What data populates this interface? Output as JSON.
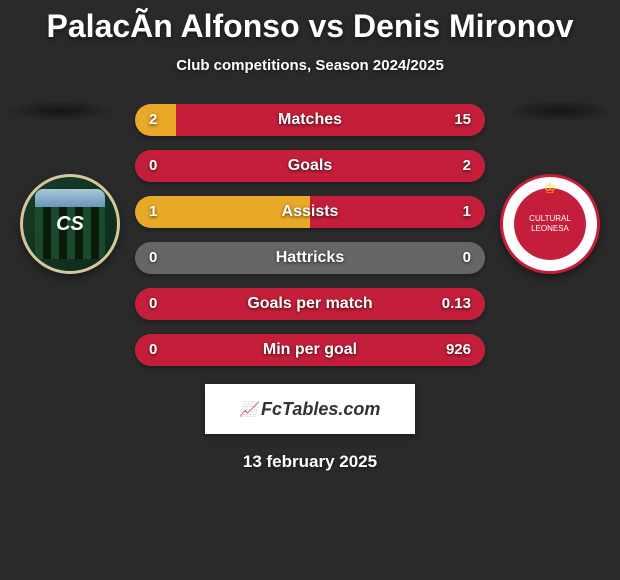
{
  "title": "PalacÃ­n Alfonso vs Denis Mironov",
  "subtitle": "Club competitions, Season 2024/2025",
  "player_left_color": "#e8a828",
  "player_right_color": "#c41e3a",
  "neutral_bar_color": "#666666",
  "stats": [
    {
      "label": "Matches",
      "left_val": "2",
      "right_val": "15",
      "left_pct": 11.8,
      "right_pct": 88.2
    },
    {
      "label": "Goals",
      "left_val": "0",
      "right_val": "2",
      "left_pct": 0,
      "right_pct": 100
    },
    {
      "label": "Assists",
      "left_val": "1",
      "right_val": "1",
      "left_pct": 50,
      "right_pct": 50
    },
    {
      "label": "Hattricks",
      "left_val": "0",
      "right_val": "0",
      "left_pct": 0,
      "right_pct": 0
    },
    {
      "label": "Goals per match",
      "left_val": "0",
      "right_val": "0.13",
      "left_pct": 0,
      "right_pct": 100
    },
    {
      "label": "Min per goal",
      "left_val": "0",
      "right_val": "926",
      "left_pct": 0,
      "right_pct": 100
    }
  ],
  "banner_text": "FcTables.com",
  "footer_date": "13 february 2025"
}
